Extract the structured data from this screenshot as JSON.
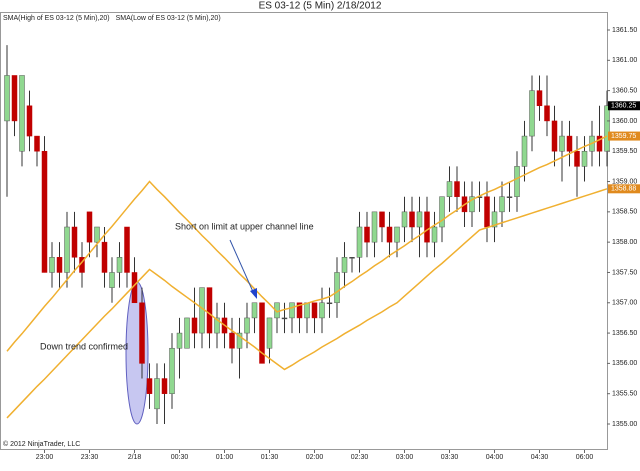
{
  "chart_data": {
    "type": "candlestick",
    "title": "ES 03-12 (5 Min)  2/18/2012",
    "annotations": [
      "Short on limit at upper channel line",
      "Down trend confirmed"
    ],
    "copyright": "© 2012 NinjaTrader, LLC",
    "up_color": "#90d890",
    "down_color": "#c00000",
    "wick_color": "#333333",
    "grid": false,
    "categories": [
      null,
      null,
      null,
      null,
      null,
      "23:00",
      null,
      null,
      null,
      null,
      null,
      "23:30",
      null,
      null,
      null,
      null,
      null,
      "2/18",
      null,
      null,
      null,
      null,
      null,
      "00:30",
      null,
      null,
      null,
      null,
      null,
      "01:00",
      null,
      null,
      null,
      null,
      null,
      "01:30",
      null,
      null,
      null,
      null,
      null,
      "02:00",
      null,
      null,
      null,
      null,
      null,
      "02:30",
      null,
      null,
      null,
      null,
      null,
      "03:00",
      null,
      null,
      null,
      null,
      null,
      "03:30",
      null,
      null,
      null,
      null,
      null,
      "04:00",
      null,
      null,
      null,
      null,
      null,
      "04:30",
      null,
      null,
      null,
      null,
      null,
      "06:00",
      null,
      null,
      null
    ],
    "open": [
      1360.0,
      1360.75,
      1359.5,
      1360.25,
      1359.75,
      1359.5,
      1357.5,
      1357.75,
      1357.5,
      1358.25,
      1357.75,
      1358.5,
      1358.0,
      1358.0,
      1357.25,
      1357.5,
      1358.25,
      1357.5,
      1357.0,
      1355.75,
      1355.25,
      1355.75,
      1355.5,
      1356.25,
      1356.25,
      1356.75,
      1356.5,
      1357.25,
      1356.5,
      1356.75,
      1356.5,
      1356.25,
      1356.5,
      1356.75,
      1357.0,
      1356.25,
      1356.75,
      1356.75,
      1356.75,
      1357.0,
      1356.75,
      1357.0,
      1356.75,
      1357.0,
      1357.0,
      1357.5,
      1357.75,
      1357.75,
      1358.25,
      1358.0,
      1358.5,
      1358.25,
      1358.0,
      1358.25,
      1358.5,
      1358.25,
      1358.5,
      1358.0,
      1358.25,
      1358.75,
      1359.0,
      1358.75,
      1358.5,
      1358.75,
      1358.75,
      1358.25,
      1358.5,
      1358.75,
      1358.75,
      1359.25,
      1359.75,
      1360.5,
      1360.25,
      1360.0,
      1359.5,
      1359.75,
      1359.5,
      1359.25,
      1359.5,
      1359.75,
      1359.5
    ],
    "high": [
      1361.25,
      1360.75,
      1360.75,
      1360.5,
      1359.75,
      1359.75,
      1358.0,
      1358.0,
      1358.5,
      1358.5,
      1358.0,
      1358.5,
      1358.25,
      1358.25,
      1357.75,
      1358.0,
      1358.25,
      1357.75,
      1357.25,
      1356.0,
      1356.0,
      1356.0,
      1356.5,
      1356.75,
      1356.75,
      1357.25,
      1357.25,
      1357.25,
      1357.0,
      1357.0,
      1356.75,
      1356.75,
      1357.0,
      1357.0,
      1357.0,
      1356.75,
      1357.0,
      1357.0,
      1357.0,
      1357.0,
      1357.0,
      1357.0,
      1357.25,
      1357.25,
      1357.75,
      1358.0,
      1357.75,
      1358.5,
      1358.5,
      1358.5,
      1358.5,
      1358.5,
      1358.25,
      1358.75,
      1358.75,
      1358.75,
      1358.75,
      1358.5,
      1358.75,
      1359.25,
      1359.25,
      1359.0,
      1359.0,
      1359.0,
      1359.0,
      1358.75,
      1359.0,
      1359.0,
      1359.5,
      1360.0,
      1360.75,
      1360.75,
      1360.75,
      1360.25,
      1360.0,
      1360.0,
      1359.75,
      1359.75,
      1360.0,
      1360.25,
      1360.5
    ],
    "low": [
      1358.75,
      1359.75,
      1359.25,
      1359.5,
      1359.25,
      1357.5,
      1357.25,
      1357.25,
      1357.25,
      1357.5,
      1357.25,
      1357.75,
      1357.75,
      1357.25,
      1357.0,
      1357.25,
      1357.25,
      1357.0,
      1355.75,
      1355.25,
      1355.0,
      1355.0,
      1355.25,
      1355.75,
      1356.25,
      1356.25,
      1356.25,
      1356.25,
      1356.25,
      1356.25,
      1356.0,
      1355.75,
      1356.25,
      1356.5,
      1356.0,
      1356.0,
      1356.5,
      1356.5,
      1356.5,
      1356.5,
      1356.5,
      1356.5,
      1356.5,
      1356.75,
      1356.75,
      1357.25,
      1357.5,
      1357.5,
      1357.75,
      1357.75,
      1358.0,
      1357.75,
      1357.75,
      1358.0,
      1358.0,
      1357.75,
      1357.75,
      1357.75,
      1358.0,
      1358.5,
      1358.5,
      1358.25,
      1358.25,
      1358.5,
      1358.0,
      1358.0,
      1358.25,
      1358.5,
      1358.5,
      1359.0,
      1359.5,
      1360.0,
      1359.75,
      1359.25,
      1359.0,
      1359.25,
      1358.75,
      1359.0,
      1359.25,
      1359.25,
      1359.25
    ],
    "close": [
      1360.75,
      1360.0,
      1360.75,
      1359.75,
      1359.5,
      1357.5,
      1357.75,
      1357.5,
      1358.25,
      1357.75,
      1357.5,
      1358.0,
      1358.25,
      1357.5,
      1357.5,
      1357.75,
      1357.5,
      1357.0,
      1356.0,
      1355.5,
      1355.75,
      1355.5,
      1356.25,
      1356.5,
      1356.75,
      1356.5,
      1357.25,
      1356.5,
      1356.75,
      1356.5,
      1356.25,
      1356.5,
      1356.75,
      1357.0,
      1356.0,
      1356.75,
      1357.0,
      1356.75,
      1357.0,
      1356.75,
      1357.0,
      1356.75,
      1357.0,
      1357.0,
      1357.5,
      1357.75,
      1357.75,
      1358.25,
      1358.0,
      1358.5,
      1358.25,
      1358.0,
      1358.25,
      1358.5,
      1358.25,
      1358.5,
      1358.0,
      1358.25,
      1358.75,
      1359.0,
      1358.75,
      1358.5,
      1358.75,
      1358.75,
      1358.25,
      1358.5,
      1358.75,
      1358.75,
      1359.25,
      1359.75,
      1360.5,
      1360.25,
      1360.0,
      1359.5,
      1359.75,
      1359.5,
      1359.25,
      1359.5,
      1359.75,
      1359.5,
      1360.25
    ],
    "series": [
      {
        "name": "SMA(High of ES 03-12 (5 Min),20)",
        "color": "#f0b030",
        "values": [
          1356.2,
          1356.35,
          1356.49,
          1356.64,
          1356.79,
          1356.94,
          1357.08,
          1357.23,
          1357.38,
          1357.53,
          1357.67,
          1357.82,
          1357.97,
          1358.12,
          1358.26,
          1358.41,
          1358.56,
          1358.71,
          1358.85,
          1359.0,
          1358.87,
          1358.75,
          1358.62,
          1358.49,
          1358.37,
          1358.24,
          1358.11,
          1357.99,
          1357.86,
          1357.74,
          1357.61,
          1357.48,
          1357.36,
          1357.23,
          1357.1,
          1356.98,
          1356.85,
          1356.89,
          1356.92,
          1356.96,
          1356.99,
          1357.03,
          1357.06,
          1357.1,
          1357.18,
          1357.27,
          1357.35,
          1357.44,
          1357.52,
          1357.61,
          1357.69,
          1357.78,
          1357.86,
          1357.94,
          1358.03,
          1358.11,
          1358.2,
          1358.28,
          1358.36,
          1358.45,
          1358.53,
          1358.62,
          1358.7,
          1358.76,
          1358.82,
          1358.87,
          1358.93,
          1358.99,
          1359.05,
          1359.11,
          1359.17,
          1359.23,
          1359.28,
          1359.34,
          1359.4,
          1359.46,
          1359.52,
          1359.58,
          1359.63,
          1359.69,
          1359.75
        ]
      },
      {
        "name": "SMA(Low of ES 03-12 (5 Min),20)",
        "color": "#f0b030",
        "values": [
          1355.1,
          1355.23,
          1355.36,
          1355.49,
          1355.62,
          1355.74,
          1355.87,
          1356.0,
          1356.13,
          1356.26,
          1356.39,
          1356.52,
          1356.65,
          1356.78,
          1356.9,
          1357.03,
          1357.16,
          1357.29,
          1357.42,
          1357.55,
          1357.46,
          1357.37,
          1357.27,
          1357.18,
          1357.09,
          1357.0,
          1356.91,
          1356.82,
          1356.72,
          1356.63,
          1356.54,
          1356.45,
          1356.36,
          1356.27,
          1356.17,
          1356.08,
          1355.99,
          1355.9,
          1355.97,
          1356.05,
          1356.12,
          1356.19,
          1356.27,
          1356.34,
          1356.41,
          1356.49,
          1356.56,
          1356.63,
          1356.71,
          1356.78,
          1356.85,
          1356.93,
          1357.0,
          1357.11,
          1357.22,
          1357.33,
          1357.44,
          1357.55,
          1357.65,
          1357.76,
          1357.87,
          1357.98,
          1358.09,
          1358.2,
          1358.24,
          1358.28,
          1358.32,
          1358.36,
          1358.4,
          1358.44,
          1358.48,
          1358.52,
          1358.56,
          1358.6,
          1358.64,
          1358.68,
          1358.72,
          1358.76,
          1358.8,
          1358.84,
          1358.88
        ]
      }
    ],
    "price_markers": [
      {
        "value": 1360.25,
        "color": "#000000"
      },
      {
        "value": 1359.75,
        "color": "#e08a1e"
      },
      {
        "value": 1358.88,
        "color": "#e08a1e"
      }
    ],
    "ylim": [
      1355.0,
      1361.5
    ],
    "yticks": [
      {
        "value": 1355.0,
        "label": "1355.00"
      },
      {
        "value": 1355.5,
        "label": "1355.50"
      },
      {
        "value": 1356.0,
        "label": "1356.00"
      },
      {
        "value": 1356.5,
        "label": "1356.50"
      },
      {
        "value": 1357.0,
        "label": "1357.00"
      },
      {
        "value": 1357.5,
        "label": "1357.50"
      },
      {
        "value": 1358.0,
        "label": "1358.00"
      },
      {
        "value": 1358.5,
        "label": "1358.50"
      },
      {
        "value": 1359.0,
        "label": "1359.00"
      },
      {
        "value": 1359.5,
        "label": "1359.50"
      },
      {
        "value": 1360.0,
        "label": "1360.00"
      },
      {
        "value": 1360.5,
        "label": "1360.50"
      },
      {
        "value": 1361.0,
        "label": "1361.00"
      },
      {
        "value": 1361.5,
        "label": "1361.50"
      }
    ]
  }
}
